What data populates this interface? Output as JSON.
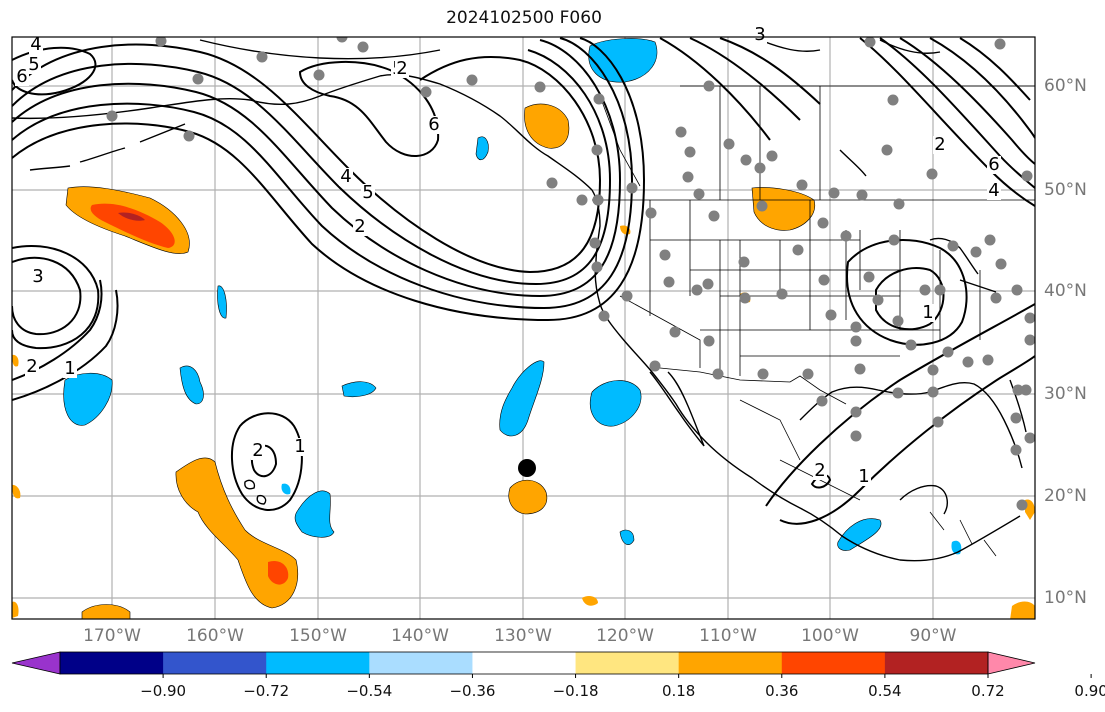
{
  "title": "2024102500 F060",
  "longitude_labels": [
    "170°W",
    "160°W",
    "150°W",
    "140°W",
    "130°W",
    "120°W",
    "110°W",
    "100°W",
    "90°W"
  ],
  "latitude_labels": [
    "60°N",
    "50°N",
    "40°N",
    "30°N",
    "20°N",
    "10°N"
  ],
  "contour_labels": [
    "4",
    "5",
    "6",
    "5",
    "6",
    "3",
    "4",
    "5",
    "2",
    "3",
    "2",
    "1",
    "2",
    "1",
    "1",
    "2",
    "1",
    "2",
    "4",
    "6",
    "2"
  ],
  "colorbar": {
    "tick_labels": [
      "−0.90",
      "−0.72",
      "−0.54",
      "−0.36",
      "−0.18",
      "0.18",
      "0.36",
      "0.54",
      "0.72",
      "0.90"
    ],
    "colors": [
      "#9933cc",
      "#000088",
      "#3355cc",
      "#00bbff",
      "#aaddff",
      "#ffffff",
      "#ffe680",
      "#ffa500",
      "#ff4500",
      "#b22222",
      "#ff88aa"
    ]
  },
  "colors": {
    "contour": "#000000",
    "station": "#808080",
    "grid": "#b0b0b0",
    "marker": "#000000"
  }
}
